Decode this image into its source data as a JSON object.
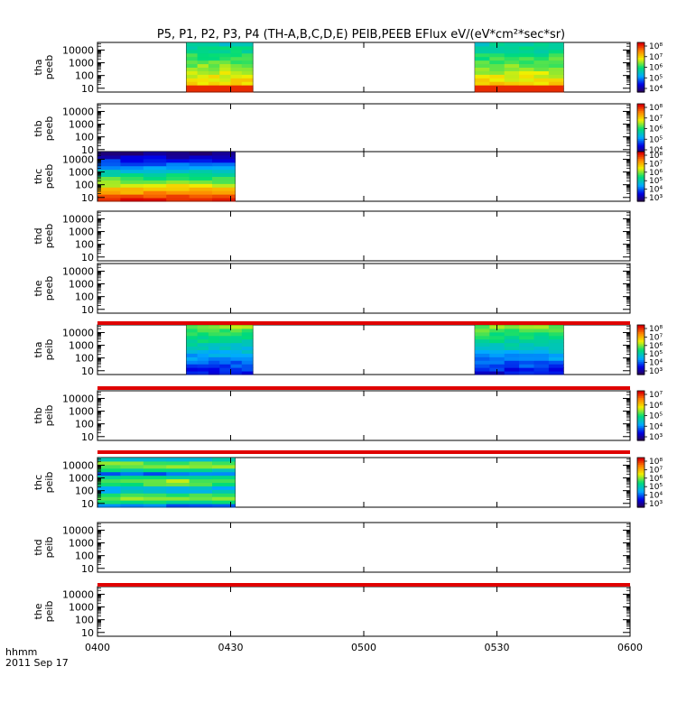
{
  "chart_data": {
    "type": "heatmap",
    "title": "P5, P1, P2, P3, P4 (TH-A,B,C,D,E) PEIB,PEEB EFlux eV/(eV*cm²*sec*sr)",
    "xlabel": "hhmm",
    "xlabel_date": "2011 Sep 17",
    "x_ticks": [
      "0400",
      "0430",
      "0500",
      "0530",
      "0600"
    ],
    "x_range": [
      "04:00",
      "06:00"
    ],
    "y_scale": "log",
    "y_ticks": [
      "10",
      "100",
      "1000",
      "10000"
    ],
    "colormap": "rainbow",
    "panels": [
      {
        "label_top": "tha",
        "label_bottom": "peeb",
        "data_intervals": [
          [
            "04:20",
            "04:35"
          ],
          [
            "05:25",
            "05:45"
          ]
        ],
        "colorbar_ticks": [
          "10⁴",
          "10⁵",
          "10⁶",
          "10⁷",
          "10⁸"
        ],
        "has_colorbar": true,
        "has_top_strip": false
      },
      {
        "label_top": "thb",
        "label_bottom": "peeb",
        "data_intervals": [],
        "colorbar_ticks": [
          "10⁴",
          "10⁵",
          "10⁶",
          "10⁷",
          "10⁸"
        ],
        "has_colorbar": true,
        "has_top_strip": false
      },
      {
        "label_top": "thc",
        "label_bottom": "peeb",
        "data_intervals": [
          [
            "04:00",
            "04:31"
          ]
        ],
        "colorbar_ticks": [
          "10³",
          "10⁴",
          "10⁵",
          "10⁶",
          "10⁷",
          "10⁸"
        ],
        "has_colorbar": true,
        "has_top_strip": false
      },
      {
        "label_top": "thd",
        "label_bottom": "peeb",
        "data_intervals": [],
        "colorbar_ticks": [],
        "has_colorbar": false,
        "has_top_strip": false
      },
      {
        "label_top": "the",
        "label_bottom": "peeb",
        "data_intervals": [],
        "colorbar_ticks": [],
        "has_colorbar": false,
        "has_top_strip": false
      },
      {
        "label_top": "tha",
        "label_bottom": "peib",
        "data_intervals": [
          [
            "04:20",
            "04:35"
          ],
          [
            "05:25",
            "05:45"
          ]
        ],
        "colorbar_ticks": [
          "10³",
          "10⁴",
          "10⁵",
          "10⁶",
          "10⁷",
          "10⁸"
        ],
        "has_colorbar": true,
        "has_top_strip": true
      },
      {
        "label_top": "thb",
        "label_bottom": "peib",
        "data_intervals": [],
        "colorbar_ticks": [
          "10³",
          "10⁴",
          "10⁵",
          "10⁶",
          "10⁷"
        ],
        "has_colorbar": true,
        "has_top_strip": true
      },
      {
        "label_top": "thc",
        "label_bottom": "peib",
        "data_intervals": [
          [
            "04:00",
            "04:31"
          ]
        ],
        "colorbar_ticks": [
          "10³",
          "10⁴",
          "10⁵",
          "10⁶",
          "10⁷",
          "10⁸"
        ],
        "has_colorbar": true,
        "has_top_strip": true
      },
      {
        "label_top": "thd",
        "label_bottom": "peib",
        "data_intervals": [],
        "colorbar_ticks": [],
        "has_colorbar": false,
        "has_top_strip": false
      },
      {
        "label_top": "the",
        "label_bottom": "peib",
        "data_intervals": [],
        "colorbar_ticks": [],
        "has_colorbar": false,
        "has_top_strip": true
      }
    ]
  }
}
